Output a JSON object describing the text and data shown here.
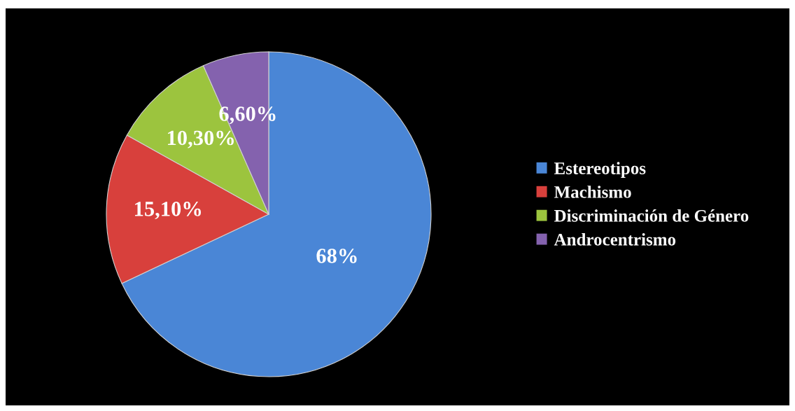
{
  "chart_data": {
    "type": "pie",
    "categories": [
      "Estereotipos",
      "Machismo",
      "Discriminación de Género",
      "Androcentrismo"
    ],
    "values": [
      68,
      15.1,
      10.3,
      6.6
    ],
    "value_labels": [
      "68%",
      "15,10%",
      "10,30%",
      "6,60%"
    ],
    "colors": [
      "#4a86d6",
      "#d8403c",
      "#9cc43e",
      "#8462ae"
    ],
    "legend": "right"
  }
}
